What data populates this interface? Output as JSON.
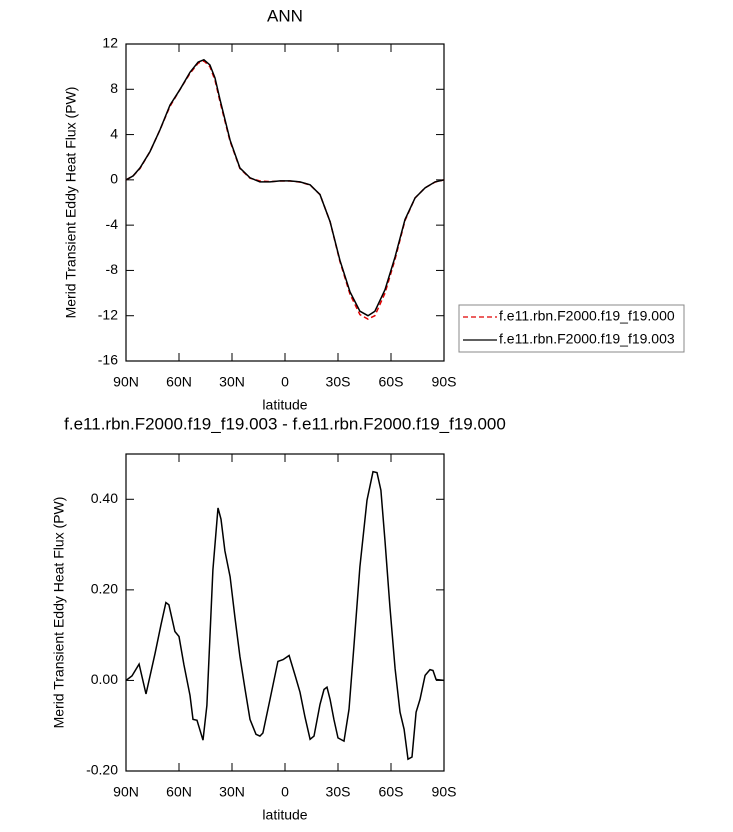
{
  "chart_data": [
    {
      "type": "line",
      "title": "ANN",
      "xlabel": "latitude",
      "ylabel": "Merid Transient Eddy Heat Flux (PW)",
      "x": [
        90,
        86.0,
        82.1,
        76.4,
        70.8,
        65.1,
        59.4,
        53.8,
        49.2,
        45.9,
        42.5,
        39.6,
        36.8,
        31.1,
        25.5,
        19.8,
        14.2,
        8.5,
        2.8,
        -2.8,
        -8.5,
        -14.2,
        -19.8,
        -25.5,
        -31.1,
        -36.8,
        -42.4,
        -47.0,
        -50.9,
        -56.6,
        -62.3,
        -67.9,
        -73.6,
        -79.3,
        -84.9,
        -90
      ],
      "series": [
        {
          "name": "f.e11.rbn.F2000.f19_f19.000",
          "color": "#e00000",
          "linestyle": "dashed",
          "values": [
            0,
            0.35,
            1.0,
            2.5,
            4.4,
            6.5,
            8.0,
            9.4,
            10.3,
            10.5,
            10.0,
            8.8,
            6.9,
            3.4,
            1.0,
            0.15,
            -0.1,
            -0.15,
            -0.1,
            -0.1,
            -0.2,
            -0.45,
            -1.3,
            -3.7,
            -7.2,
            -10.1,
            -11.9,
            -12.3,
            -12.0,
            -10.0,
            -7.0,
            -3.6,
            -1.6,
            -0.7,
            -0.2,
            0
          ]
        },
        {
          "name": "f.e11.rbn.F2000.f19_f19.003",
          "color": "#000000",
          "linestyle": "solid",
          "values": [
            0,
            0.35,
            1.06,
            2.5,
            4.4,
            6.6,
            8.0,
            9.5,
            10.4,
            10.6,
            10.15,
            9.0,
            7.1,
            3.5,
            1.06,
            0.18,
            -0.18,
            -0.18,
            -0.09,
            -0.09,
            -0.18,
            -0.44,
            -1.3,
            -3.7,
            -7.1,
            -9.9,
            -11.6,
            -12.0,
            -11.6,
            -9.7,
            -6.8,
            -3.5,
            -1.6,
            -0.7,
            -0.18,
            0
          ]
        }
      ],
      "xlim": [
        90,
        -90
      ],
      "ylim": [
        -16,
        12
      ],
      "xticks": [
        {
          "value": 90,
          "label": "90N"
        },
        {
          "value": 60,
          "label": "60N"
        },
        {
          "value": 30,
          "label": "30N"
        },
        0,
        {
          "value": -30,
          "label": "30S"
        },
        {
          "value": -60,
          "label": "60S"
        },
        {
          "value": -90,
          "label": "90S"
        }
      ],
      "yticks": [
        12,
        8,
        4,
        0,
        -4,
        -8,
        -12,
        -16
      ],
      "legend": "outside right"
    },
    {
      "type": "line",
      "title": "f.e11.rbn.F2000.f19_f19.003 - f.e11.rbn.F2000.f19_f19.000",
      "xlabel": "latitude",
      "ylabel": "Merid Transient Eddy Heat Flux (PW)",
      "x": [
        90,
        86.6,
        82.6,
        78.7,
        73.6,
        70.2,
        67.4,
        65.7,
        62.3,
        60.0,
        57.2,
        53.8,
        52.1,
        49.8,
        46.4,
        44.2,
        40.8,
        37.9,
        36.2,
        34.0,
        31.1,
        28.3,
        25.5,
        22.6,
        19.8,
        16.4,
        14.2,
        12.5,
        8.5,
        4.0,
        1.1,
        -2.3,
        -5.7,
        -8.5,
        -11.3,
        -14.2,
        -16.4,
        -19.8,
        -22.1,
        -23.8,
        -25.5,
        -27.7,
        -30.0,
        -33.4,
        -36.2,
        -39.0,
        -42.4,
        -46.4,
        -49.8,
        -52.1,
        -54.3,
        -56.6,
        -59.4,
        -62.3,
        -65.1,
        -67.4,
        -69.6,
        -71.9,
        -74.2,
        -76.4,
        -79.3,
        -82.1,
        -83.8,
        -85.5,
        -90
      ],
      "values": [
        0,
        0.01,
        0.036,
        -0.03,
        0.059,
        0.123,
        0.172,
        0.167,
        0.108,
        0.097,
        0.035,
        -0.033,
        -0.086,
        -0.088,
        -0.132,
        -0.055,
        0.244,
        0.381,
        0.356,
        0.286,
        0.229,
        0.138,
        0.053,
        -0.02,
        -0.086,
        -0.119,
        -0.123,
        -0.116,
        -0.042,
        0.042,
        0.046,
        0.055,
        0.011,
        -0.026,
        -0.081,
        -0.13,
        -0.123,
        -0.053,
        -0.02,
        -0.015,
        -0.042,
        -0.086,
        -0.127,
        -0.134,
        -0.064,
        0.075,
        0.251,
        0.398,
        0.461,
        0.459,
        0.42,
        0.308,
        0.163,
        0.026,
        -0.07,
        -0.108,
        -0.174,
        -0.169,
        -0.07,
        -0.042,
        0.011,
        0.024,
        0.022,
        0.002,
        0
      ],
      "color": "#000000",
      "xlim": [
        90,
        -90
      ],
      "ylim": [
        -0.2,
        0.5
      ],
      "xticks": [
        {
          "value": 90,
          "label": "90N"
        },
        {
          "value": 60,
          "label": "60N"
        },
        {
          "value": 30,
          "label": "30N"
        },
        0,
        {
          "value": -30,
          "label": "30S"
        },
        {
          "value": -60,
          "label": "60S"
        },
        {
          "value": -90,
          "label": "90S"
        }
      ],
      "yticks": [
        {
          "value": 0.4,
          "label": "0.40"
        },
        {
          "value": 0.2,
          "label": "0.20"
        },
        {
          "value": 0,
          "label": "0.00"
        },
        {
          "value": -0.2,
          "label": "-0.20"
        }
      ]
    }
  ]
}
